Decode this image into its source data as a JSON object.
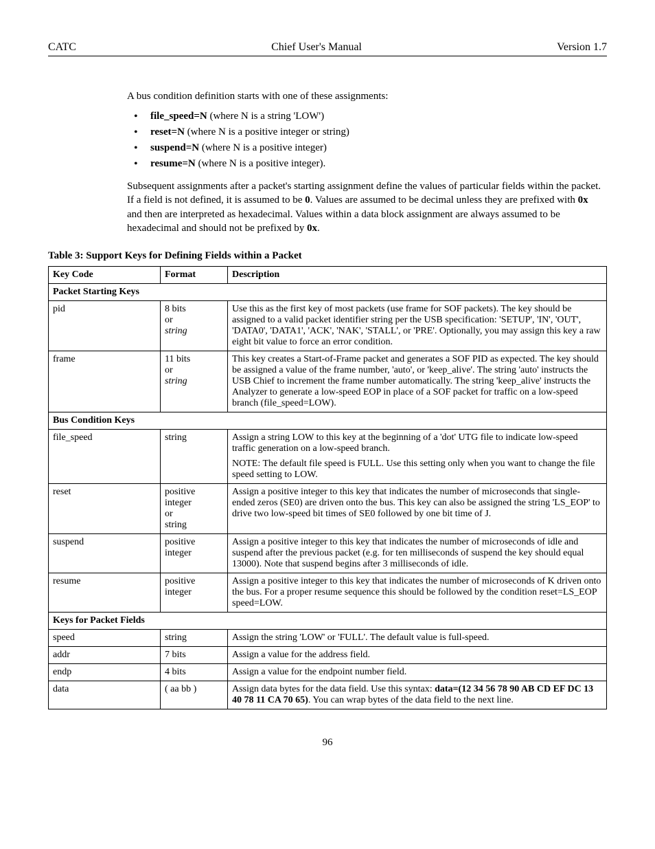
{
  "header": {
    "left": "CATC",
    "center": "Chief User's Manual",
    "right": "Version 1.7"
  },
  "intro": "A bus condition definition starts with one of these assignments:",
  "bullets": [
    {
      "key": "file_speed=N",
      "tail": " (where N is a string 'LOW')"
    },
    {
      "key": "reset=N",
      "tail": " (where N is a positive integer or string)"
    },
    {
      "key": "suspend=N",
      "tail": " (where N is a positive integer)"
    },
    {
      "key": "resume=N",
      "tail": " (where N is a positive integer)."
    }
  ],
  "para2_a": "Subsequent assignments after a packet's starting assignment define the values of particular fields within the packet. If a field is not defined, it is assumed to be ",
  "para2_b0": "0",
  "para2_c": ". Values are assumed to be decimal unless they are prefixed with ",
  "para2_b1": "0x",
  "para2_d": " and then are interpreted as hexadecimal. Values within a data block assignment are always assumed to be hexadecimal and should not be prefixed by ",
  "para2_b2": "0x",
  "para2_e": ".",
  "table_title": "Table 3: Support Keys for Defining Fields within a Packet",
  "columns": {
    "key": "Key Code",
    "format": "Format",
    "desc": "Description"
  },
  "sections": {
    "s1": "Packet Starting Keys",
    "s2": "Bus Condition Keys",
    "s3": "Keys for Packet Fields"
  },
  "rows": {
    "pid": {
      "key": "pid",
      "format_a": "8 bits\nor",
      "format_b": "string",
      "desc": "Use this as the first key of most packets (use frame for SOF packets). The key should be assigned to a valid packet identifier string per the USB specification: 'SETUP', 'IN', 'OUT', 'DATA0', 'DATA1', 'ACK', 'NAK', 'STALL', or 'PRE'. Optionally, you may assign this key a raw eight bit value to force an error condition."
    },
    "frame": {
      "key": "frame",
      "format_a": "11 bits\nor",
      "format_b": "string",
      "desc": "This key creates a Start-of-Frame packet and generates a SOF PID as expected. The key should be assigned a value of the frame number, 'auto', or 'keep_alive'. The string 'auto' instructs the USB Chief to increment the frame number automatically. The string 'keep_alive' instructs the Analyzer to generate a low-speed EOP in place of a SOF packet for traffic on a low-speed branch (file_speed=LOW)."
    },
    "file_speed": {
      "key": "file_speed",
      "format": "string",
      "desc1": "Assign a string LOW to this key at the beginning of a 'dot' UTG file to indicate low-speed traffic generation on a low-speed branch.",
      "desc2": "NOTE: The default file speed is FULL. Use this setting only when you want to change the file speed setting to LOW."
    },
    "reset": {
      "key": "reset",
      "format": "positive\ninteger\nor\nstring",
      "desc": "Assign a positive integer to this key that indicates the number of microseconds that single-ended zeros (SE0) are driven onto the bus. This key can also be assigned the string 'LS_EOP' to drive two low-speed bit times of SE0 followed by one bit time of J."
    },
    "suspend": {
      "key": "suspend",
      "format": "positive\ninteger",
      "desc": "Assign a positive integer to this key that indicates the number of microseconds of idle and suspend after the previous packet (e.g. for ten milliseconds of suspend the key should equal 13000). Note that suspend begins after 3 milliseconds of idle."
    },
    "resume": {
      "key": "resume",
      "format": "positive\ninteger",
      "desc": "Assign a positive integer to this key that indicates the number of microseconds of K driven onto the bus. For a proper resume sequence this should be followed by the condition reset=LS_EOP speed=LOW."
    },
    "speed": {
      "key": "speed",
      "format": "string",
      "desc": "Assign the string 'LOW' or 'FULL'. The default value is full-speed."
    },
    "addr": {
      "key": "addr",
      "format": "7 bits",
      "desc": "Assign a value for the address field."
    },
    "endp": {
      "key": "endp",
      "format": "4 bits",
      "desc": "Assign a value for the endpoint number field."
    },
    "data": {
      "key": "data",
      "format": "( aa bb )",
      "desc_a": "Assign data bytes for the data field. Use this syntax: ",
      "desc_bold": "data=(12 34 56 78 90 AB CD EF DC 13 40 78 11 CA 70 65)",
      "desc_b": ". You can wrap bytes of the data field to the next line."
    }
  },
  "page_number": "96"
}
